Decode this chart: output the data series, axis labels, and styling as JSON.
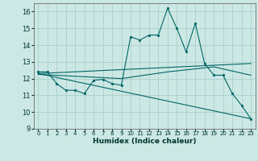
{
  "xlabel": "Humidex (Indice chaleur)",
  "bg_color": "#cce8e4",
  "grid_color": "#aacfcc",
  "line_color": "#006666",
  "xlim": [
    -0.5,
    23.5
  ],
  "ylim": [
    9,
    16.5
  ],
  "yticks": [
    9,
    10,
    11,
    12,
    13,
    14,
    15,
    16
  ],
  "xticks": [
    0,
    1,
    2,
    3,
    4,
    5,
    6,
    7,
    8,
    9,
    10,
    11,
    12,
    13,
    14,
    15,
    16,
    17,
    18,
    19,
    20,
    21,
    22,
    23
  ],
  "main_x": [
    0,
    1,
    2,
    3,
    4,
    5,
    6,
    7,
    8,
    9,
    10,
    11,
    12,
    13,
    14,
    15,
    16,
    17,
    18,
    19,
    20,
    21,
    22,
    23
  ],
  "main_y": [
    12.4,
    12.4,
    11.7,
    11.3,
    11.3,
    11.1,
    11.9,
    11.95,
    11.7,
    11.6,
    14.5,
    14.3,
    14.6,
    14.6,
    16.2,
    15.0,
    13.6,
    15.3,
    12.9,
    12.2,
    12.2,
    11.1,
    10.4,
    9.6
  ],
  "trend1_x": [
    0,
    23
  ],
  "trend1_y": [
    12.3,
    12.9
  ],
  "trend2_x": [
    0,
    23
  ],
  "trend2_y": [
    12.3,
    9.6
  ],
  "smooth_x": [
    0,
    9,
    14,
    19,
    23
  ],
  "smooth_y": [
    12.25,
    12.0,
    12.4,
    12.7,
    12.2
  ]
}
